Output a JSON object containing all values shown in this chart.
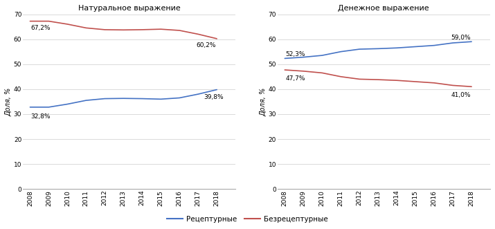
{
  "years": [
    2008,
    2009,
    2010,
    2011,
    2012,
    2013,
    2014,
    2015,
    2016,
    2017,
    2018
  ],
  "natural_rx": [
    32.8,
    32.8,
    34.0,
    35.5,
    36.2,
    36.3,
    36.2,
    36.0,
    36.5,
    38.0,
    39.8
  ],
  "natural_otc": [
    67.2,
    67.2,
    66.0,
    64.5,
    63.8,
    63.7,
    63.8,
    64.0,
    63.5,
    62.0,
    60.2
  ],
  "money_rx": [
    52.3,
    52.8,
    53.5,
    55.0,
    56.0,
    56.2,
    56.5,
    57.0,
    57.5,
    58.5,
    59.0
  ],
  "money_otc": [
    47.7,
    47.2,
    46.5,
    45.0,
    44.0,
    43.8,
    43.5,
    43.0,
    42.5,
    41.5,
    41.0
  ],
  "title_left": "Натуральное выражение",
  "title_right": "Денежное выражение",
  "ylabel": "Доля, %",
  "legend_rx": "Рецептурные",
  "legend_otc": "Безрецептурные",
  "color_rx": "#4472C4",
  "color_otc": "#C0504D",
  "ylim": [
    0,
    70
  ],
  "yticks": [
    0,
    10,
    20,
    30,
    40,
    50,
    60,
    70
  ]
}
